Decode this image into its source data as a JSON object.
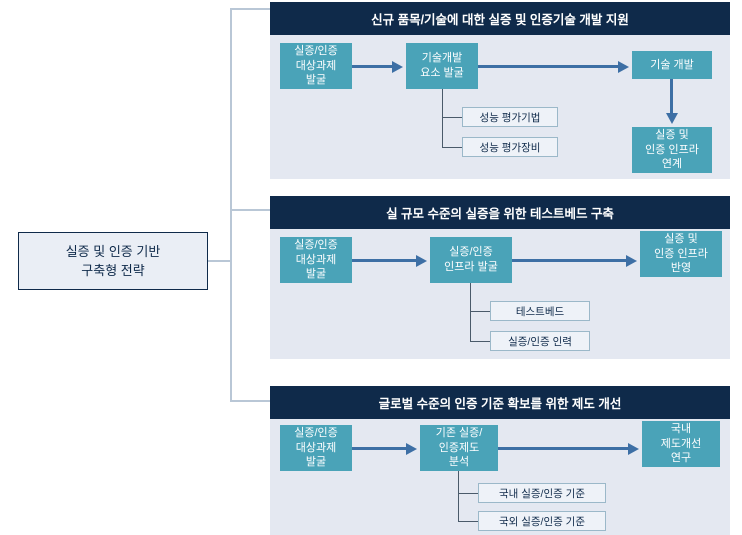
{
  "root": {
    "label": "실증 및 인증 기반\n구축형 전략"
  },
  "sections": [
    {
      "title": "신규 품목/기술에 대한 실증 및 인증기술 개발 지원",
      "nodes": {
        "a": "실증/인증\n대상과제\n발굴",
        "b": "기술개발\n요소 발굴",
        "c": "기술 개발",
        "d": "실증 및\n인증 인프라\n연계"
      },
      "subs": {
        "s1": "성능 평가기법",
        "s2": "성능 평가장비"
      }
    },
    {
      "title": "실 규모 수준의 실증을 위한 테스트베드 구축",
      "nodes": {
        "a": "실증/인증\n대상과제\n발굴",
        "b": "실증/인증\n인프라 발굴",
        "c": "실증 및\n인증 인프라\n반영"
      },
      "subs": {
        "s1": "테스트베드",
        "s2": "실증/인증 인력"
      }
    },
    {
      "title": "글로벌 수준의 인증 기준 확보를 위한 제도 개선",
      "nodes": {
        "a": "실증/인증\n대상과제\n발굴",
        "b": "기존 실증/\n인증제도\n분석",
        "c": "국내\n제도개선\n연구"
      },
      "subs": {
        "s1": "국내 실증/인증 기준",
        "s2": "국외 실증/인증 기준"
      }
    }
  ]
}
